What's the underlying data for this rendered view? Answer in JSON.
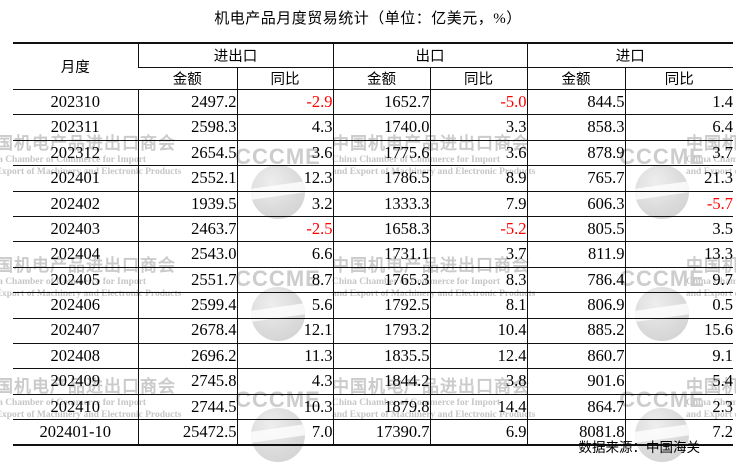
{
  "title": "机电产品月度贸易统计（单位：亿美元，%）",
  "source_note": "数据来源：中国海关",
  "colors": {
    "negative_value": "#ff0000",
    "text": "#000000",
    "watermark": "#cbcbcb"
  },
  "watermark": {
    "logo_letters": "CCCME",
    "cn": "中国机电产品进出口商会",
    "en_line1": "China Chamber of Commerce for Import",
    "en_line2": "and Export of Machinery and Electronic Products"
  },
  "table": {
    "col_month_label": "月度",
    "group_labels": [
      "进出口",
      "出口",
      "进口"
    ],
    "sub_labels": [
      "金额",
      "同比"
    ],
    "rows": [
      {
        "month": "202310",
        "cells": [
          "2497.2",
          "-2.9",
          "1652.7",
          "-5.0",
          "844.5",
          "1.4"
        ]
      },
      {
        "month": "202311",
        "cells": [
          "2598.3",
          "4.3",
          "1740.0",
          "3.3",
          "858.3",
          "6.4"
        ]
      },
      {
        "month": "202312",
        "cells": [
          "2654.5",
          "3.6",
          "1775.6",
          "3.6",
          "878.9",
          "3.7"
        ]
      },
      {
        "month": "202401",
        "cells": [
          "2552.1",
          "12.3",
          "1786.5",
          "8.9",
          "765.7",
          "21.3"
        ]
      },
      {
        "month": "202402",
        "cells": [
          "1939.5",
          "3.2",
          "1333.3",
          "7.9",
          "606.3",
          "-5.7"
        ]
      },
      {
        "month": "202403",
        "cells": [
          "2463.7",
          "-2.5",
          "1658.3",
          "-5.2",
          "805.5",
          "3.5"
        ]
      },
      {
        "month": "202404",
        "cells": [
          "2543.0",
          "6.6",
          "1731.1",
          "3.7",
          "811.9",
          "13.3"
        ]
      },
      {
        "month": "202405",
        "cells": [
          "2551.7",
          "8.7",
          "1765.3",
          "8.3",
          "786.4",
          "9.7"
        ]
      },
      {
        "month": "202406",
        "cells": [
          "2599.4",
          "5.6",
          "1792.5",
          "8.1",
          "806.9",
          "0.5"
        ]
      },
      {
        "month": "202407",
        "cells": [
          "2678.4",
          "12.1",
          "1793.2",
          "10.4",
          "885.2",
          "15.6"
        ]
      },
      {
        "month": "202408",
        "cells": [
          "2696.2",
          "11.3",
          "1835.5",
          "12.4",
          "860.7",
          "9.1"
        ]
      },
      {
        "month": "202409",
        "cells": [
          "2745.8",
          "4.3",
          "1844.2",
          "3.8",
          "901.6",
          "5.4"
        ]
      },
      {
        "month": "202410",
        "cells": [
          "2744.5",
          "10.3",
          "1879.8",
          "14.4",
          "864.7",
          "2.3"
        ]
      },
      {
        "month": "202401-10",
        "cells": [
          "25472.5",
          "7.0",
          "17390.7",
          "6.9",
          "8081.8",
          "7.2"
        ]
      }
    ]
  },
  "chart_data": {
    "type": "table",
    "title": "机电产品月度贸易统计（单位：亿美元，%）",
    "columns": [
      "月度",
      "进出口 金额",
      "进出口 同比",
      "出口 金额",
      "出口 同比",
      "进口 金额",
      "进口 同比"
    ],
    "rows": [
      [
        "202310",
        2497.2,
        -2.9,
        1652.7,
        -5.0,
        844.5,
        1.4
      ],
      [
        "202311",
        2598.3,
        4.3,
        1740.0,
        3.3,
        858.3,
        6.4
      ],
      [
        "202312",
        2654.5,
        3.6,
        1775.6,
        3.6,
        878.9,
        3.7
      ],
      [
        "202401",
        2552.1,
        12.3,
        1786.5,
        8.9,
        765.7,
        21.3
      ],
      [
        "202402",
        1939.5,
        3.2,
        1333.3,
        7.9,
        606.3,
        -5.7
      ],
      [
        "202403",
        2463.7,
        -2.5,
        1658.3,
        -5.2,
        805.5,
        3.5
      ],
      [
        "202404",
        2543.0,
        6.6,
        1731.1,
        3.7,
        811.9,
        13.3
      ],
      [
        "202405",
        2551.7,
        8.7,
        1765.3,
        8.3,
        786.4,
        9.7
      ],
      [
        "202406",
        2599.4,
        5.6,
        1792.5,
        8.1,
        806.9,
        0.5
      ],
      [
        "202407",
        2678.4,
        12.1,
        1793.2,
        10.4,
        885.2,
        15.6
      ],
      [
        "202408",
        2696.2,
        11.3,
        1835.5,
        12.4,
        860.7,
        9.1
      ],
      [
        "202409",
        2745.8,
        4.3,
        1844.2,
        3.8,
        901.6,
        5.4
      ],
      [
        "202410",
        2744.5,
        10.3,
        1879.8,
        14.4,
        864.7,
        2.3
      ],
      [
        "202401-10",
        25472.5,
        7.0,
        17390.7,
        6.9,
        8081.8,
        7.2
      ]
    ]
  }
}
